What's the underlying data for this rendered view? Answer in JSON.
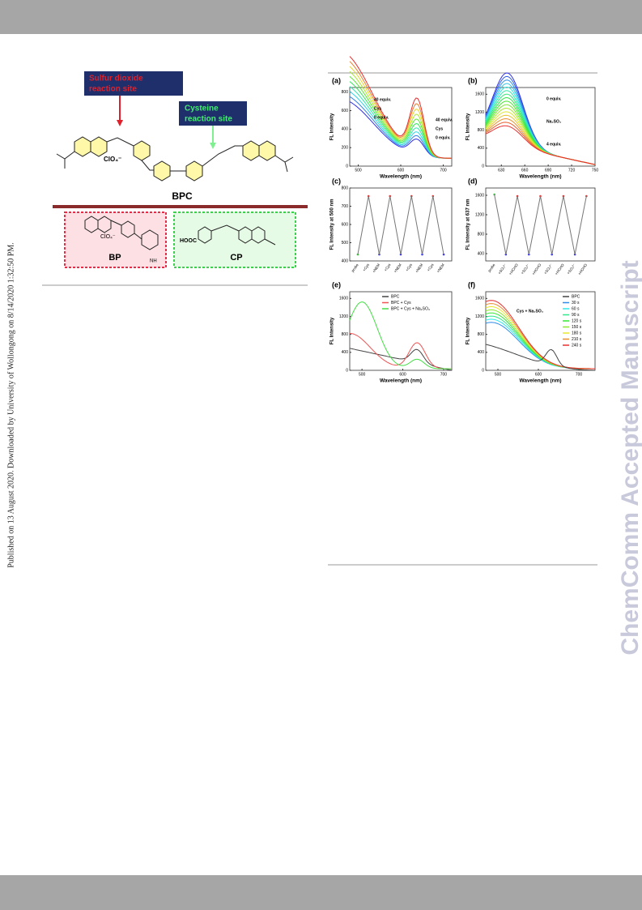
{
  "side_note": "Published on 13 August 2020. Downloaded by University of Wollongong on 8/14/2020 1:32:50 PM.",
  "watermark": "ChemComm Accepted Manuscript",
  "scheme": {
    "sulfur_site": [
      "Sulfur dioxide",
      "reaction site"
    ],
    "cysteine_site": [
      "Cysteine",
      "reaction site"
    ],
    "counter_ion": "ClO₄⁻",
    "main_compound": "BPC",
    "product_1": "BP",
    "product_2": "CP",
    "acid_group": "HOOC",
    "amine": "NH"
  },
  "panels": [
    {
      "label": "(a)",
      "y_label": "FL Intensity",
      "x_label": "Wavelength (nm)",
      "x_ticks": [
        500,
        600,
        700
      ],
      "x_range": [
        480,
        720
      ],
      "y_ticks": [
        0,
        200,
        400,
        600,
        800
      ],
      "y_range": [
        0,
        850
      ],
      "annotations": [
        "40 equiv.",
        "Cys",
        "0 equiv.",
        "40 equiv.",
        "Cys",
        "0 equiv."
      ]
    },
    {
      "label": "(b)",
      "y_label": "FL Intensity",
      "x_label": "Wavelength (nm)",
      "x_ticks": [
        630,
        660,
        690,
        720,
        750
      ],
      "x_range": [
        610,
        750
      ],
      "y_ticks": [
        0,
        400,
        800,
        1200,
        1600
      ],
      "y_range": [
        0,
        1750
      ],
      "annotations": [
        "0 equiv.",
        "Na₂SO₃",
        "4 equiv."
      ]
    },
    {
      "label": "(c)",
      "y_label": "FL Intensity at 500 nm",
      "y_ticks": [
        400,
        500,
        600,
        700,
        800
      ],
      "y_range": [
        400,
        800
      ],
      "categories": [
        "probe",
        "+Cys",
        "+NEM",
        "+Cys",
        "+NEM",
        "+Cys",
        "+NEM",
        "+Cys",
        "+NEM"
      ]
    },
    {
      "label": "(d)",
      "y_label": "FL Intensity at 637 nm",
      "y_ticks": [
        400,
        800,
        1200,
        1600
      ],
      "y_range": [
        250,
        1750
      ],
      "categories": [
        "probe",
        "+SO₃²⁻",
        "+HCHO",
        "+SO₃²⁻",
        "+HCHO",
        "+SO₃²⁻",
        "+HCHO",
        "+SO₃²⁻",
        "+HCHO"
      ]
    },
    {
      "label": "(e)",
      "y_label": "FL Intensity",
      "x_label": "Wavelength (nm)",
      "x_ticks": [
        500,
        600,
        700
      ],
      "x_range": [
        470,
        720
      ],
      "y_ticks": [
        0,
        400,
        800,
        1200,
        1600
      ],
      "y_range": [
        0,
        1750
      ],
      "legend": [
        "BPC",
        "BPC + Cys",
        "BPC + Cys + Na₂SO₃"
      ]
    },
    {
      "label": "(f)",
      "y_label": "FL Intensity",
      "x_label": "Wavelength (nm)",
      "x_ticks": [
        500,
        600,
        700
      ],
      "x_range": [
        470,
        740
      ],
      "y_ticks": [
        0,
        400,
        800,
        1200,
        1600
      ],
      "y_range": [
        0,
        1750
      ],
      "legend": [
        "BPC",
        "30 s",
        "60 s",
        "90 s",
        "120 s",
        "150 s",
        "180 s",
        "210 s",
        "240 s"
      ],
      "annotations": [
        "Cys + Na₂SO₃"
      ]
    }
  ]
}
